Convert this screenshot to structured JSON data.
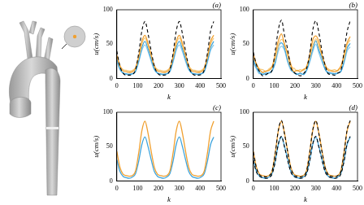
{
  "chart_data": [
    {
      "type": "line",
      "title": "(a)",
      "x_label": "k",
      "y_label": "u(cm/s)",
      "x": [
        0,
        15,
        30,
        45,
        60,
        75,
        90,
        105,
        120,
        135,
        150,
        165,
        180,
        195,
        210,
        225,
        240,
        255,
        270,
        285,
        300,
        315,
        330,
        345,
        360,
        375,
        390,
        405,
        420,
        435,
        450,
        465
      ],
      "xlim": [
        0,
        500
      ],
      "xticks": [
        0,
        100,
        200,
        300,
        400,
        500
      ],
      "ylim": [
        0,
        100
      ],
      "yticks": [
        0,
        50,
        100
      ],
      "grid": false,
      "series": [
        {
          "color": "#000000",
          "line_style": "dashed",
          "values": [
            40,
            18,
            8,
            5,
            5,
            6,
            13,
            37,
            69,
            83,
            65,
            40,
            18,
            8,
            5,
            5,
            6,
            13,
            37,
            69,
            83,
            65,
            40,
            18,
            8,
            5,
            5,
            6,
            13,
            37,
            69,
            83
          ]
        },
        {
          "color": "#f0a030",
          "line_style": "solid",
          "values": [
            34,
            18,
            11,
            10,
            9,
            10,
            15,
            32,
            54,
            63,
            51,
            34,
            18,
            11,
            10,
            9,
            10,
            15,
            32,
            54,
            63,
            51,
            34,
            18,
            11,
            10,
            9,
            10,
            15,
            32,
            54,
            63
          ]
        },
        {
          "color": "#f6c878",
          "line_style": "solid",
          "values": [
            33,
            19,
            13,
            12,
            11,
            12,
            16,
            31,
            50,
            59,
            48,
            33,
            19,
            13,
            12,
            11,
            12,
            16,
            31,
            50,
            59,
            48,
            33,
            19,
            13,
            12,
            11,
            12,
            16,
            31,
            50,
            59
          ]
        },
        {
          "color": "#3fa4dc",
          "line_style": "solid",
          "values": [
            28,
            14,
            8,
            7,
            6,
            7,
            11,
            26,
            45,
            54,
            43,
            28,
            14,
            8,
            7,
            6,
            7,
            11,
            26,
            45,
            54,
            43,
            28,
            14,
            8,
            7,
            6,
            7,
            11,
            26,
            45,
            54
          ]
        },
        {
          "color": "#8ccbea",
          "line_style": "solid",
          "values": [
            25,
            13,
            8,
            6,
            6,
            7,
            10,
            24,
            41,
            49,
            39,
            25,
            13,
            8,
            6,
            6,
            7,
            10,
            24,
            41,
            49,
            39,
            25,
            13,
            8,
            6,
            6,
            7,
            10,
            24,
            41,
            49
          ]
        }
      ]
    },
    {
      "type": "line",
      "title": "(b)",
      "x_label": "k",
      "y_label": "u(cm/s)",
      "x": [
        0,
        15,
        30,
        45,
        60,
        75,
        90,
        105,
        120,
        135,
        150,
        165,
        180,
        195,
        210,
        225,
        240,
        255,
        270,
        285,
        300,
        315,
        330,
        345,
        360,
        375,
        390,
        405,
        420,
        435,
        450,
        465
      ],
      "xlim": [
        0,
        500
      ],
      "xticks": [
        0,
        100,
        200,
        300,
        400,
        500
      ],
      "ylim": [
        0,
        100
      ],
      "yticks": [
        0,
        50,
        100
      ],
      "grid": false,
      "series": [
        {
          "color": "#000000",
          "line_style": "dashed",
          "values": [
            38,
            20,
            10,
            4,
            6,
            8,
            12,
            40,
            71,
            85,
            62,
            42,
            16,
            9,
            6,
            4,
            7,
            14,
            35,
            70,
            84,
            66,
            39,
            19,
            7,
            6,
            5,
            8,
            12,
            38,
            68,
            84
          ]
        },
        {
          "color": "#f0a030",
          "line_style": "solid",
          "values": [
            36,
            20,
            13,
            9,
            11,
            12,
            17,
            35,
            55,
            65,
            49,
            37,
            21,
            10,
            12,
            10,
            13,
            17,
            33,
            56,
            62,
            53,
            33,
            20,
            12,
            11,
            10,
            12,
            18,
            34,
            52,
            61
          ]
        },
        {
          "color": "#f6c878",
          "line_style": "solid",
          "values": [
            30,
            22,
            14,
            13,
            10,
            14,
            18,
            29,
            48,
            57,
            50,
            31,
            17,
            15,
            11,
            13,
            12,
            17,
            30,
            48,
            58,
            46,
            34,
            18,
            14,
            12,
            13,
            11,
            17,
            29,
            49,
            56
          ]
        },
        {
          "color": "#3fa4dc",
          "line_style": "solid",
          "values": [
            27,
            16,
            9,
            6,
            8,
            8,
            12,
            24,
            46,
            52,
            44,
            26,
            15,
            9,
            6,
            8,
            6,
            12,
            27,
            43,
            55,
            41,
            29,
            13,
            9,
            8,
            7,
            8,
            10,
            25,
            44,
            51
          ]
        },
        {
          "color": "#8ccbea",
          "line_style": "solid",
          "values": [
            23,
            14,
            7,
            8,
            5,
            9,
            11,
            22,
            40,
            47,
            41,
            24,
            12,
            9,
            7,
            7,
            6,
            11,
            23,
            39,
            50,
            37,
            24,
            14,
            7,
            7,
            5,
            8,
            11,
            22,
            40,
            46
          ]
        }
      ]
    },
    {
      "type": "line",
      "title": "(c)",
      "x_label": "k",
      "y_label": "u(cm/s)",
      "x": [
        0,
        15,
        30,
        45,
        60,
        75,
        90,
        105,
        120,
        135,
        150,
        165,
        180,
        195,
        210,
        225,
        240,
        255,
        270,
        285,
        300,
        315,
        330,
        345,
        360,
        375,
        390,
        405,
        420,
        435,
        450,
        465
      ],
      "xlim": [
        0,
        500
      ],
      "xticks": [
        0,
        100,
        200,
        300,
        400,
        500
      ],
      "ylim": [
        0,
        100
      ],
      "yticks": [
        0,
        50,
        100
      ],
      "grid": false,
      "series": [
        {
          "color": "#f0a030",
          "line_style": "solid",
          "values": [
            43,
            20,
            10,
            8,
            7,
            8,
            15,
            41,
            73,
            87,
            69,
            43,
            20,
            10,
            8,
            7,
            8,
            15,
            41,
            73,
            87,
            69,
            43,
            20,
            10,
            8,
            7,
            8,
            15,
            41,
            73,
            87
          ]
        },
        {
          "color": "#3fa4dc",
          "line_style": "solid",
          "values": [
            31,
            14,
            7,
            5,
            4,
            6,
            11,
            29,
            53,
            64,
            50,
            31,
            14,
            7,
            5,
            4,
            6,
            11,
            29,
            53,
            64,
            50,
            31,
            14,
            7,
            5,
            4,
            6,
            11,
            29,
            53,
            64
          ]
        }
      ]
    },
    {
      "type": "line",
      "title": "(d)",
      "x_label": "k",
      "y_label": "u(cm/s)",
      "x": [
        0,
        15,
        30,
        45,
        60,
        75,
        90,
        105,
        120,
        135,
        150,
        165,
        180,
        195,
        210,
        225,
        240,
        255,
        270,
        285,
        300,
        315,
        330,
        345,
        360,
        375,
        390,
        405,
        420,
        435,
        450,
        465
      ],
      "xlim": [
        0,
        500
      ],
      "xticks": [
        0,
        100,
        200,
        300,
        400,
        500
      ],
      "ylim": [
        0,
        100
      ],
      "yticks": [
        0,
        50,
        100
      ],
      "grid": false,
      "series": [
        {
          "color": "#000000",
          "line_style": "dashed",
          "values": [
            42,
            19,
            9,
            7,
            6,
            8,
            14,
            40,
            74,
            88,
            68,
            42,
            19,
            9,
            7,
            6,
            8,
            14,
            40,
            74,
            88,
            68,
            42,
            19,
            9,
            7,
            6,
            8,
            14,
            40,
            74,
            88
          ]
        },
        {
          "color": "#000000",
          "line_style": "dashed",
          "values": [
            30,
            13,
            7,
            5,
            4,
            5,
            10,
            28,
            54,
            65,
            49,
            30,
            13,
            7,
            5,
            4,
            5,
            10,
            28,
            54,
            65,
            49,
            30,
            13,
            7,
            5,
            4,
            5,
            10,
            28,
            54,
            65
          ]
        },
        {
          "color": "#f0a030",
          "line_style": "solid",
          "values": [
            43,
            20,
            10,
            8,
            7,
            8,
            15,
            41,
            73,
            87,
            69,
            43,
            20,
            10,
            8,
            7,
            8,
            15,
            41,
            73,
            87,
            69,
            43,
            20,
            10,
            8,
            7,
            8,
            15,
            41,
            73,
            87
          ]
        },
        {
          "color": "#3fa4dc",
          "line_style": "solid",
          "values": [
            31,
            14,
            7,
            5,
            4,
            6,
            11,
            29,
            53,
            64,
            50,
            31,
            14,
            7,
            5,
            4,
            6,
            11,
            29,
            53,
            64,
            50,
            31,
            14,
            7,
            5,
            4,
            6,
            11,
            29,
            53,
            64
          ]
        }
      ]
    }
  ]
}
